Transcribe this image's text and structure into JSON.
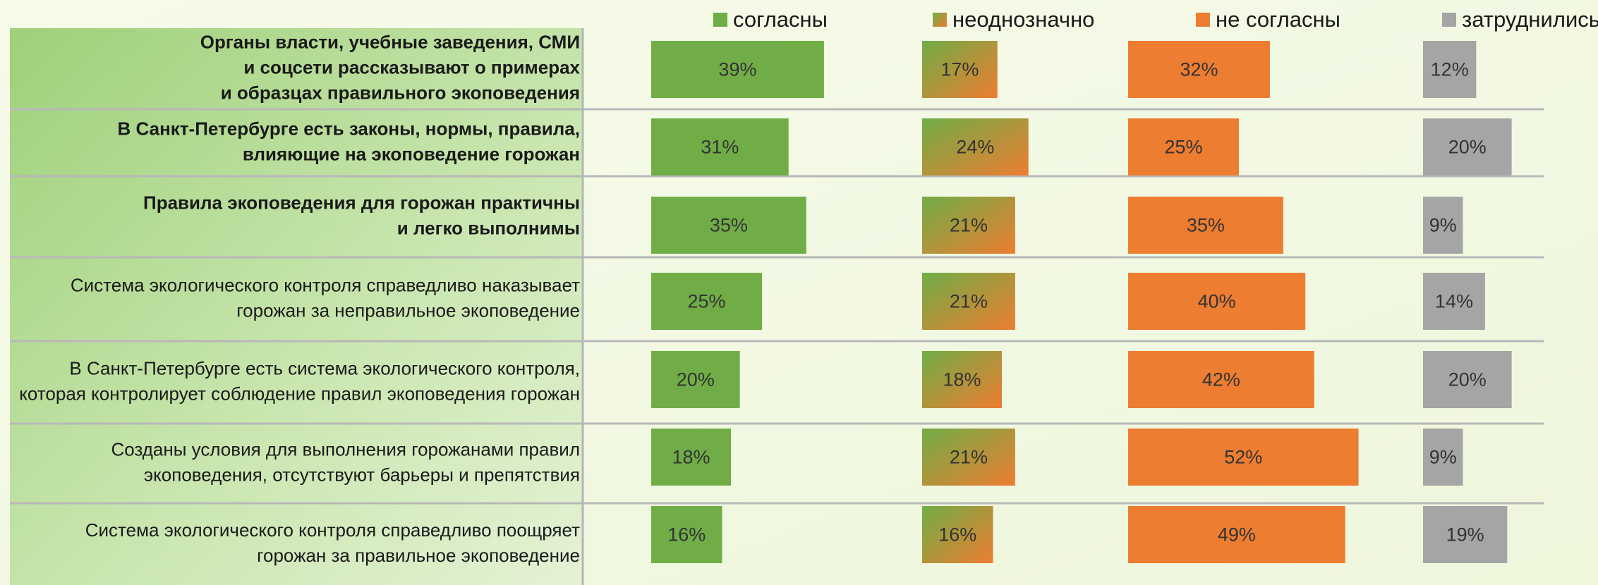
{
  "chart_data": {
    "type": "bar",
    "orientation": "horizontal",
    "categories": [
      [
        "Органы власти, учебные заведения, СМИ",
        "и соцсети рассказывают о примерах",
        "и образцах правильного экоповедения"
      ],
      [
        "В Санкт-Петербурге есть законы, нормы, правила,",
        "влияющие на экоповедение горожан"
      ],
      [
        "Правила экоповедения для горожан практичны",
        "и легко выполнимы"
      ],
      [
        "Система экологического контроля справедливо наказывает",
        "горожан за неправильное экоповедение"
      ],
      [
        "В Санкт-Петербурге есть система экологического контроля,",
        "которая контролирует соблюдение правил экоповедения горожан"
      ],
      [
        "Созданы условия для выполнения горожанами правил",
        "экоповедения, отсутствуют барьеры и препятствия"
      ],
      [
        "Система экологического контроля справедливо поощряет",
        "горожан за правильное экоповедение"
      ]
    ],
    "series": [
      {
        "name": "согласны",
        "color": "#70ad47",
        "values": [
          39,
          31,
          35,
          25,
          20,
          18,
          16
        ],
        "value_labels": [
          "39%",
          "31%",
          "35%",
          "25%",
          "20%",
          "18%",
          "16%"
        ]
      },
      {
        "name": "неоднозначно",
        "color": [
          "#70ad47",
          "#ed7d31"
        ],
        "values": [
          17,
          24,
          21,
          21,
          18,
          21,
          16
        ],
        "value_labels": [
          "17%",
          "24%",
          "21%",
          "21%",
          "18%",
          "21%",
          "16%"
        ]
      },
      {
        "name": "не согласны",
        "color": "#ed7d31",
        "values": [
          32,
          25,
          35,
          40,
          42,
          52,
          49
        ],
        "value_labels": [
          "32%",
          "25%",
          "35%",
          "40%",
          "42%",
          "52%",
          "49%"
        ]
      },
      {
        "name": "затруднились",
        "color": "#a5a5a5",
        "values": [
          12,
          20,
          9,
          14,
          20,
          9,
          19
        ],
        "value_labels": [
          "12%",
          "20%",
          "9%",
          "14%",
          "20%",
          "9%",
          "19%"
        ]
      }
    ],
    "legend": "top"
  }
}
